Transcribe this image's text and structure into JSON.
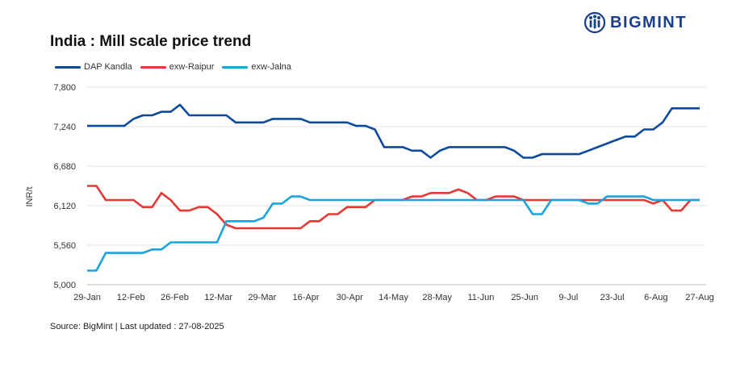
{
  "title": "India : Mill scale price trend",
  "brand": {
    "name": "BIGMINT",
    "logo_icon": "bigmint-figures-icon"
  },
  "source": "Source: BigMint | Last updated : 27-08-2025",
  "colors": {
    "DAP Kandla": "#0d4a9b",
    "exw-Raipur": "#e53935",
    "exw-Jalna": "#1ba3dc",
    "grid": "#e3e3e3",
    "axis": "#bdbdbd"
  },
  "legend": [
    {
      "label": "DAP Kandla",
      "color": "#0d4a9b"
    },
    {
      "label": "exw-Raipur",
      "color": "#e53935"
    },
    {
      "label": "exw-Jalna",
      "color": "#1ba3dc"
    }
  ],
  "chart_data": {
    "type": "line",
    "title": "India : Mill scale price trend",
    "xlabel": "",
    "ylabel": "INR/t",
    "ylim": [
      5000,
      7800
    ],
    "yticks": [
      5000,
      5560,
      6120,
      6680,
      7240,
      7800
    ],
    "ytick_labels": [
      "5,000",
      "5,560",
      "6,120",
      "6,680",
      "7,240",
      "7,800"
    ],
    "grid": true,
    "legend_position": "top-left",
    "x_tick_labels": [
      "29-Jan",
      "12-Feb",
      "26-Feb",
      "12-Mar",
      "29-Mar",
      "16-Apr",
      "30-Apr",
      "14-May",
      "28-May",
      "11-Jun",
      "25-Jun",
      "9-Jul",
      "23-Jul",
      "6-Aug",
      "27-Aug"
    ],
    "series": [
      {
        "name": "DAP Kandla",
        "values": [
          7250,
          7250,
          7250,
          7250,
          7250,
          7350,
          7400,
          7400,
          7450,
          7450,
          7550,
          7400,
          7400,
          7400,
          7400,
          7400,
          7300,
          7300,
          7300,
          7300,
          7350,
          7350,
          7350,
          7350,
          7300,
          7300,
          7300,
          7300,
          7300,
          7250,
          7250,
          7200,
          6950,
          6950,
          6950,
          6900,
          6900,
          6800,
          6900,
          6950,
          6950,
          6950,
          6950,
          6950,
          6950,
          6950,
          6900,
          6800,
          6800,
          6850,
          6850,
          6850,
          6850,
          6850,
          6900,
          6950,
          7000,
          7050,
          7100,
          7100,
          7200,
          7200,
          7300,
          7500,
          7500,
          7500,
          7500
        ]
      },
      {
        "name": "exw-Raipur",
        "values": [
          6400,
          6400,
          6200,
          6200,
          6200,
          6200,
          6100,
          6100,
          6300,
          6200,
          6050,
          6050,
          6100,
          6100,
          6000,
          5850,
          5800,
          5800,
          5800,
          5800,
          5800,
          5800,
          5800,
          5800,
          5900,
          5900,
          6000,
          6000,
          6100,
          6100,
          6100,
          6200,
          6200,
          6200,
          6200,
          6250,
          6250,
          6300,
          6300,
          6300,
          6350,
          6300,
          6200,
          6200,
          6250,
          6250,
          6250,
          6200,
          6200,
          6200,
          6200,
          6200,
          6200,
          6200,
          6200,
          6200,
          6200,
          6200,
          6200,
          6200,
          6200,
          6150,
          6200,
          6050,
          6050,
          6200,
          6200
        ]
      },
      {
        "name": "exw-Jalna",
        "values": [
          5200,
          5200,
          5450,
          5450,
          5450,
          5450,
          5450,
          5500,
          5500,
          5600,
          5600,
          5600,
          5600,
          5600,
          5600,
          5900,
          5900,
          5900,
          5900,
          5950,
          6150,
          6150,
          6250,
          6250,
          6200,
          6200,
          6200,
          6200,
          6200,
          6200,
          6200,
          6200,
          6200,
          6200,
          6200,
          6200,
          6200,
          6200,
          6200,
          6200,
          6200,
          6200,
          6200,
          6200,
          6200,
          6200,
          6200,
          6200,
          6000,
          6000,
          6200,
          6200,
          6200,
          6200,
          6150,
          6150,
          6250,
          6250,
          6250,
          6250,
          6250,
          6200,
          6200,
          6200,
          6200,
          6200,
          6200
        ]
      }
    ]
  }
}
